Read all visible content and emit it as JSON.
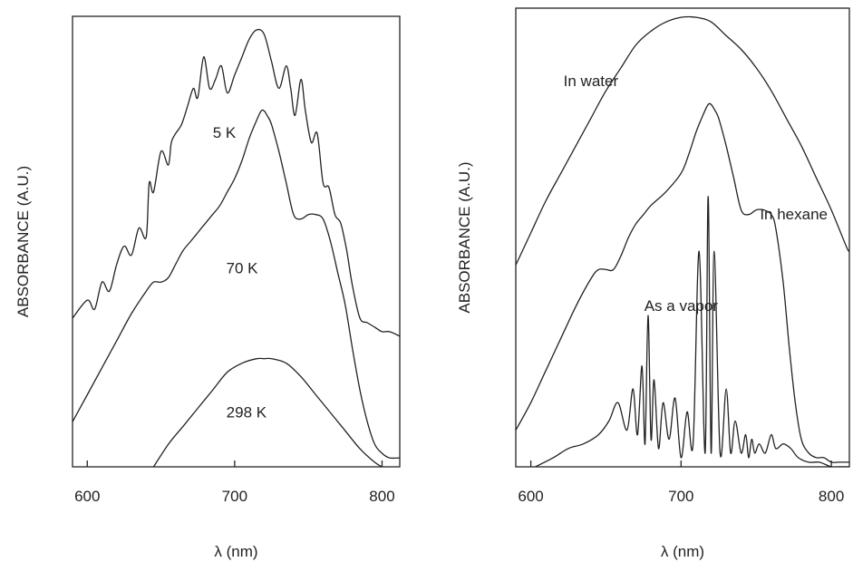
{
  "chart_data": [
    {
      "type": "line",
      "xlabel": "λ (nm)",
      "ylabel": "ABSORBANCE (A.U.)",
      "xlim": [
        590,
        812
      ],
      "ylim": [
        0,
        1
      ],
      "xticks": [
        600,
        700,
        800
      ],
      "y_tick_labels": false,
      "grid": false,
      "legend": "none",
      "series": [
        {
          "name": "5 K",
          "x": [
            590,
            600,
            605,
            610,
            615,
            620,
            625,
            630,
            635,
            640,
            642,
            645,
            650,
            655,
            657,
            660,
            664,
            668,
            672,
            675,
            679,
            683,
            687,
            691,
            695,
            700,
            705,
            710,
            715,
            720,
            725,
            730,
            735,
            738,
            741,
            745,
            748,
            752,
            756,
            760,
            764,
            768,
            772,
            776,
            780,
            785,
            790,
            795,
            800,
            805,
            812
          ],
          "y": [
            0.33,
            0.37,
            0.35,
            0.41,
            0.39,
            0.45,
            0.49,
            0.47,
            0.53,
            0.51,
            0.63,
            0.61,
            0.7,
            0.67,
            0.72,
            0.74,
            0.76,
            0.8,
            0.84,
            0.82,
            0.91,
            0.84,
            0.86,
            0.89,
            0.83,
            0.87,
            0.91,
            0.95,
            0.97,
            0.96,
            0.9,
            0.84,
            0.89,
            0.84,
            0.78,
            0.86,
            0.79,
            0.72,
            0.74,
            0.63,
            0.62,
            0.56,
            0.54,
            0.48,
            0.4,
            0.33,
            0.32,
            0.31,
            0.3,
            0.3,
            0.29
          ]
        },
        {
          "name": "70 K",
          "x": [
            590,
            600,
            610,
            620,
            630,
            640,
            645,
            650,
            655,
            660,
            665,
            670,
            675,
            680,
            685,
            690,
            695,
            700,
            705,
            710,
            715,
            718,
            720,
            722,
            725,
            730,
            735,
            740,
            745,
            750,
            755,
            760,
            765,
            770,
            775,
            780,
            785,
            790,
            795,
            800,
            805,
            812
          ],
          "y": [
            0.1,
            0.16,
            0.22,
            0.28,
            0.34,
            0.39,
            0.41,
            0.41,
            0.42,
            0.45,
            0.48,
            0.5,
            0.52,
            0.54,
            0.56,
            0.58,
            0.61,
            0.64,
            0.68,
            0.73,
            0.77,
            0.79,
            0.79,
            0.78,
            0.76,
            0.7,
            0.63,
            0.56,
            0.55,
            0.56,
            0.56,
            0.55,
            0.5,
            0.43,
            0.36,
            0.26,
            0.17,
            0.1,
            0.05,
            0.03,
            0.02,
            0.02
          ]
        },
        {
          "name": "298 K",
          "x": [
            645,
            655,
            665,
            675,
            685,
            695,
            705,
            715,
            720,
            725,
            735,
            745,
            755,
            765,
            775,
            785,
            795,
            800
          ],
          "y": [
            0.0,
            0.05,
            0.09,
            0.13,
            0.17,
            0.21,
            0.23,
            0.24,
            0.24,
            0.24,
            0.23,
            0.2,
            0.16,
            0.12,
            0.08,
            0.04,
            0.01,
            0.0
          ]
        }
      ],
      "annotations": [
        {
          "text": "5 K",
          "x": 693,
          "y": 0.73
        },
        {
          "text": "70 K",
          "x": 705,
          "y": 0.43
        },
        {
          "text": "298 K",
          "x": 708,
          "y": 0.11
        }
      ]
    },
    {
      "type": "line",
      "xlabel": "λ (nm)",
      "ylabel": "ABSORBANCE (A.U.)",
      "xlim": [
        590,
        812
      ],
      "ylim": [
        0,
        1
      ],
      "xticks": [
        600,
        700,
        800
      ],
      "y_tick_labels": false,
      "grid": false,
      "legend": "none",
      "series": [
        {
          "name": "In water",
          "x": [
            590,
            600,
            610,
            620,
            630,
            640,
            650,
            660,
            670,
            680,
            690,
            700,
            710,
            720,
            730,
            740,
            750,
            760,
            770,
            780,
            790,
            800,
            810,
            812
          ],
          "y": [
            0.44,
            0.51,
            0.58,
            0.64,
            0.7,
            0.76,
            0.82,
            0.87,
            0.92,
            0.95,
            0.97,
            0.98,
            0.98,
            0.97,
            0.94,
            0.91,
            0.87,
            0.82,
            0.76,
            0.7,
            0.63,
            0.56,
            0.48,
            0.47
          ]
        },
        {
          "name": "In hexane",
          "x": [
            590,
            600,
            610,
            620,
            630,
            640,
            645,
            650,
            655,
            660,
            665,
            670,
            675,
            680,
            690,
            700,
            705,
            710,
            715,
            718,
            720,
            722,
            725,
            730,
            735,
            740,
            745,
            750,
            755,
            760,
            763,
            768,
            772,
            776,
            780,
            785,
            790,
            795,
            800,
            805,
            812
          ],
          "y": [
            0.08,
            0.14,
            0.21,
            0.28,
            0.35,
            0.41,
            0.43,
            0.43,
            0.43,
            0.46,
            0.5,
            0.53,
            0.55,
            0.57,
            0.6,
            0.64,
            0.68,
            0.73,
            0.77,
            0.79,
            0.79,
            0.78,
            0.76,
            0.7,
            0.63,
            0.56,
            0.55,
            0.56,
            0.56,
            0.55,
            0.52,
            0.4,
            0.26,
            0.14,
            0.06,
            0.03,
            0.02,
            0.02,
            0.01,
            0.01,
            0.01
          ]
        },
        {
          "name": "As a vapor",
          "x": [
            603,
            615,
            625,
            635,
            645,
            652,
            658,
            664,
            668,
            671,
            674,
            676,
            678,
            680,
            682,
            685,
            688,
            692,
            696,
            700,
            704,
            708,
            712,
            716,
            718,
            720,
            722,
            726,
            730,
            733,
            736,
            740,
            743,
            745,
            747,
            749,
            752,
            756,
            760,
            763,
            768,
            773,
            778,
            785,
            792,
            800,
            805,
            812
          ],
          "y": [
            0.0,
            0.02,
            0.04,
            0.05,
            0.07,
            0.1,
            0.14,
            0.08,
            0.17,
            0.07,
            0.22,
            0.05,
            0.33,
            0.06,
            0.19,
            0.04,
            0.14,
            0.06,
            0.15,
            0.02,
            0.12,
            0.05,
            0.47,
            0.03,
            0.59,
            0.03,
            0.47,
            0.03,
            0.17,
            0.03,
            0.1,
            0.03,
            0.07,
            0.02,
            0.06,
            0.03,
            0.05,
            0.03,
            0.07,
            0.04,
            0.05,
            0.04,
            0.02,
            0.01,
            0.01,
            0.0,
            0.0,
            0.0
          ]
        }
      ],
      "annotations": [
        {
          "text": "In water",
          "x": 640,
          "y": 0.83
        },
        {
          "text": "In hexane",
          "x": 775,
          "y": 0.54
        },
        {
          "text": "As a vapor",
          "x": 700,
          "y": 0.34
        }
      ]
    }
  ]
}
